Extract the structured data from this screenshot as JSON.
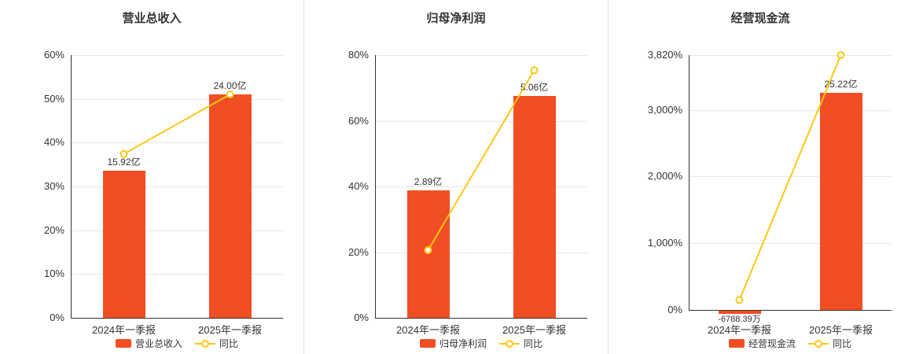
{
  "page": {
    "background": "#ffffff"
  },
  "colors": {
    "bar": "#f14e23",
    "line": "#fec715",
    "axis": "#333333",
    "grid": "#e8e8e8",
    "text": "#333333"
  },
  "chart_data": [
    {
      "type": "bar",
      "title": "营业总收入",
      "categories": [
        "2024年一季报",
        "2025年一季报"
      ],
      "bar_series": {
        "name": "营业总收入",
        "value_labels": [
          "15.92亿",
          "24.00亿"
        ],
        "values_on_pct_axis": [
          33.6,
          51.0
        ]
      },
      "line_series": {
        "name": "同比",
        "values_pct": [
          37.4,
          51.0
        ]
      },
      "y_axis": {
        "min": 0,
        "max": 60,
        "ticks_pct": [
          0,
          10,
          20,
          30,
          40,
          50,
          60
        ],
        "tick_labels": [
          "0%",
          "10%",
          "20%",
          "30%",
          "40%",
          "50%",
          "60%"
        ]
      },
      "legend": [
        "营业总收入",
        "同比"
      ]
    },
    {
      "type": "bar",
      "title": "归母净利润",
      "categories": [
        "2024年一季报",
        "2025年一季报"
      ],
      "bar_series": {
        "name": "归母净利润",
        "value_labels": [
          "2.89亿",
          "5.06亿"
        ],
        "values_on_pct_axis": [
          38.8,
          67.5
        ]
      },
      "line_series": {
        "name": "同比",
        "values_pct": [
          20.6,
          75.4
        ]
      },
      "y_axis": {
        "min": 0,
        "max": 80,
        "ticks_pct": [
          0,
          20,
          40,
          60,
          80
        ],
        "tick_labels": [
          "0%",
          "20%",
          "40%",
          "60%",
          "80%"
        ]
      },
      "legend": [
        "归母净利润",
        "同比"
      ]
    },
    {
      "type": "bar",
      "title": "经营现金流",
      "categories": [
        "2024年一季报",
        "2025年一季报"
      ],
      "bar_series": {
        "name": "经营现金流",
        "value_labels": [
          "-6788.39万",
          "25.22亿"
        ],
        "values_on_pct_axis": [
          -50,
          3250
        ]
      },
      "line_series": {
        "name": "同比",
        "values_pct": [
          150,
          3820
        ]
      },
      "y_axis": {
        "min": 0,
        "max": 3820,
        "ticks_pct": [
          0,
          1000,
          2000,
          3000,
          3820
        ],
        "tick_labels": [
          "0%",
          "1,000%",
          "2,000%",
          "3,000%",
          "3,820%"
        ]
      },
      "legend": [
        "经营现金流",
        "同比"
      ]
    }
  ]
}
